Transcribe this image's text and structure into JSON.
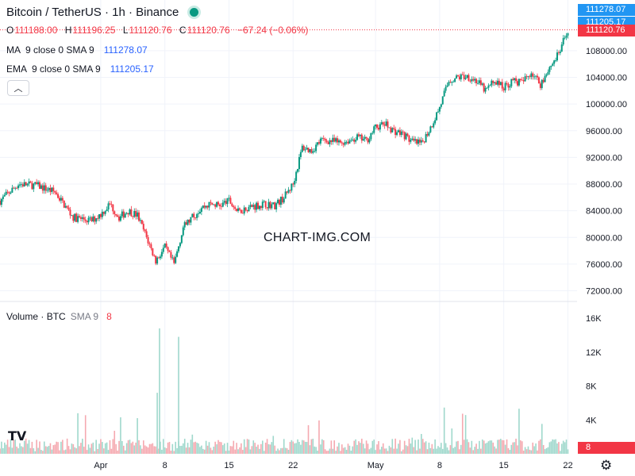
{
  "header": {
    "title": "Bitcoin / TetherUS · 1h · Binance",
    "ohlc": {
      "o_label": "O",
      "o": "111188.00",
      "h_label": "H",
      "h": "111196.25",
      "l_label": "L",
      "l": "111120.76",
      "c_label": "C",
      "c": "111120.76",
      "change": "−67.24 (−0.06%)"
    }
  },
  "indicators": {
    "ma": {
      "name": "MA",
      "params": "9 close 0 SMA 9",
      "value": "111278.07"
    },
    "ema": {
      "name": "EMA",
      "params": "9 close 0 SMA 9",
      "value": "111205.17"
    },
    "volume": {
      "name": "Volume · BTC",
      "params": "SMA 9",
      "value": "8"
    }
  },
  "collapse_icon": "chevron-up-icon",
  "watermark": "CHART-IMG.COM",
  "logo": "TV",
  "price_tags": {
    "ma": "111278.07",
    "ema": "111205.17",
    "last": "111120.76",
    "volume": "8"
  },
  "colors": {
    "up": "#089981",
    "down": "#f23645",
    "ma_tag": "#2196f3",
    "ema_tag": "#2196f3",
    "vol_up": "#9fd8cc",
    "vol_down": "#f5a9b0"
  },
  "chart_data": {
    "type": "candlestick",
    "interval": "1h",
    "y_ticks": [
      "72000.00",
      "76000.00",
      "80000.00",
      "84000.00",
      "88000.00",
      "92000.00",
      "96000.00",
      "100000.00",
      "104000.00",
      "108000.00"
    ],
    "y_tick_values": [
      72000,
      76000,
      80000,
      84000,
      88000,
      92000,
      96000,
      100000,
      104000,
      108000
    ],
    "ylim": [
      70400,
      115600
    ],
    "volume_ticks": [
      "4K",
      "8K",
      "12K",
      "16K"
    ],
    "volume_tick_values": [
      4000,
      8000,
      12000,
      16000
    ],
    "volume_ylim": [
      0,
      17600
    ],
    "x_ticks": [
      "Apr",
      "8",
      "15",
      "22",
      "May",
      "8",
      "15",
      "22"
    ],
    "x_tick_dates": [
      "2025-04-01",
      "2025-04-08",
      "2025-04-15",
      "2025-04-22",
      "2025-05-01",
      "2025-05-08",
      "2025-05-15",
      "2025-05-22"
    ],
    "price_path": [
      [
        "2025-03-21",
        85500
      ],
      [
        "2025-03-23",
        88000
      ],
      [
        "2025-03-25",
        87800
      ],
      [
        "2025-03-27",
        86800
      ],
      [
        "2025-03-29",
        83000
      ],
      [
        "2025-03-31",
        82500
      ],
      [
        "2025-04-01",
        83500
      ],
      [
        "2025-04-02",
        85000
      ],
      [
        "2025-04-03",
        83000
      ],
      [
        "2025-04-04",
        84000
      ],
      [
        "2025-04-05",
        83300
      ],
      [
        "2025-04-06",
        80000
      ],
      [
        "2025-04-07",
        76500
      ],
      [
        "2025-04-08",
        78500
      ],
      [
        "2025-04-09",
        76000
      ],
      [
        "2025-04-10",
        81500
      ],
      [
        "2025-04-11",
        83000
      ],
      [
        "2025-04-12",
        84500
      ],
      [
        "2025-04-13",
        85000
      ],
      [
        "2025-04-14",
        84800
      ],
      [
        "2025-04-15",
        85500
      ],
      [
        "2025-04-16",
        83800
      ],
      [
        "2025-04-17",
        84500
      ],
      [
        "2025-04-18",
        84800
      ],
      [
        "2025-04-19",
        85000
      ],
      [
        "2025-04-20",
        84800
      ],
      [
        "2025-04-21",
        86000
      ],
      [
        "2025-04-22",
        88000
      ],
      [
        "2025-04-23",
        93500
      ],
      [
        "2025-04-24",
        93000
      ],
      [
        "2025-04-25",
        94500
      ],
      [
        "2025-04-26",
        94500
      ],
      [
        "2025-04-27",
        94200
      ],
      [
        "2025-04-28",
        94500
      ],
      [
        "2025-04-29",
        95000
      ],
      [
        "2025-04-30",
        94500
      ],
      [
        "2025-05-01",
        96500
      ],
      [
        "2025-05-02",
        97000
      ],
      [
        "2025-05-03",
        96000
      ],
      [
        "2025-05-04",
        95500
      ],
      [
        "2025-05-05",
        94300
      ],
      [
        "2025-05-06",
        94000
      ],
      [
        "2025-05-07",
        96500
      ],
      [
        "2025-05-08",
        99500
      ],
      [
        "2025-05-09",
        103500
      ],
      [
        "2025-05-10",
        104000
      ],
      [
        "2025-05-11",
        104200
      ],
      [
        "2025-05-12",
        103500
      ],
      [
        "2025-05-13",
        102000
      ],
      [
        "2025-05-14",
        103500
      ],
      [
        "2025-05-15",
        102500
      ],
      [
        "2025-05-16",
        103500
      ],
      [
        "2025-05-17",
        103200
      ],
      [
        "2025-05-18",
        104800
      ],
      [
        "2025-05-19",
        103000
      ],
      [
        "2025-05-20",
        105500
      ],
      [
        "2025-05-21",
        107500
      ],
      [
        "2025-05-22",
        111120.76
      ]
    ],
    "x_start": "2025-03-21",
    "x_end": "2025-05-23",
    "last_close": 111120.76,
    "ma_last": 111278.07,
    "ema_last": 111205.17
  }
}
